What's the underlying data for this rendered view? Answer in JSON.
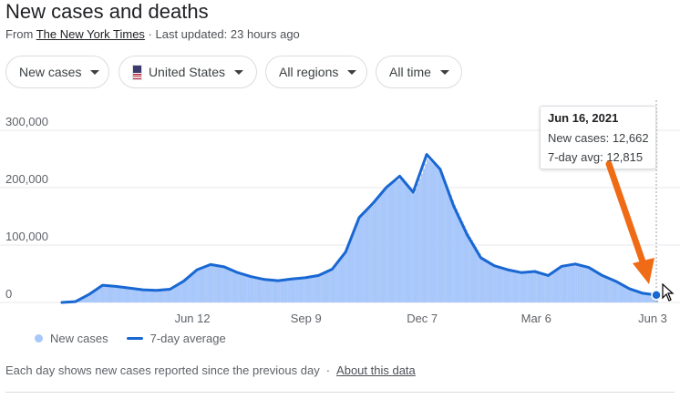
{
  "header": {
    "title": "New cases and deaths",
    "source_prefix": "From ",
    "source_name": "The New York Times",
    "source_suffix": " · Last updated: 23 hours ago"
  },
  "filters": {
    "metric": "New cases",
    "location": "United States",
    "region": "All regions",
    "range": "All time"
  },
  "tooltip": {
    "date": "Jun 16, 2021",
    "new_cases_label": "New cases:",
    "new_cases_value": "12,662",
    "avg_label": "7-day avg:",
    "avg_value": "12,815"
  },
  "legend": {
    "bars_label": "New cases",
    "line_label": "7-day average"
  },
  "footer": {
    "note": "Each day shows new cases reported since the previous day",
    "about_link": "About this data"
  },
  "colors": {
    "bar": "#a8c7fa",
    "line": "#1967d2",
    "annotation_arrow": "#f06b16"
  },
  "chart_data": {
    "type": "area",
    "x_ticks": [
      "Jun 12",
      "Sep 9",
      "Dec 7",
      "Mar 6",
      "Jun 3"
    ],
    "y_ticks": [
      "300,000",
      "200,000",
      "100,000",
      "0"
    ],
    "ylim": [
      0,
      300000
    ],
    "grid": true,
    "legend_position": "bottom-left",
    "x_range_days": 480,
    "series": [
      {
        "name": "New cases",
        "kind": "bars",
        "points": [
          [
            0,
            0
          ],
          [
            14,
            2000
          ],
          [
            28,
            15000
          ],
          [
            42,
            30000
          ],
          [
            56,
            28000
          ],
          [
            70,
            25000
          ],
          [
            84,
            22000
          ],
          [
            98,
            21000
          ],
          [
            112,
            24000
          ],
          [
            126,
            38000
          ],
          [
            140,
            58000
          ],
          [
            154,
            65000
          ],
          [
            168,
            62000
          ],
          [
            182,
            52000
          ],
          [
            196,
            45000
          ],
          [
            210,
            40000
          ],
          [
            224,
            38000
          ],
          [
            238,
            42000
          ],
          [
            252,
            44000
          ],
          [
            266,
            48000
          ],
          [
            280,
            60000
          ],
          [
            294,
            90000
          ],
          [
            308,
            150000
          ],
          [
            322,
            170000
          ],
          [
            336,
            205000
          ],
          [
            350,
            215000
          ],
          [
            364,
            190000
          ],
          [
            378,
            250000
          ],
          [
            392,
            230000
          ],
          [
            406,
            170000
          ],
          [
            420,
            120000
          ],
          [
            434,
            80000
          ],
          [
            448,
            65000
          ],
          [
            462,
            58000
          ],
          [
            476,
            52000
          ],
          [
            490,
            55000
          ],
          [
            504,
            48000
          ],
          [
            518,
            64000
          ],
          [
            532,
            68000
          ],
          [
            546,
            62000
          ],
          [
            560,
            48000
          ],
          [
            574,
            38000
          ],
          [
            588,
            25000
          ],
          [
            602,
            17000
          ],
          [
            616,
            12662
          ]
        ]
      },
      {
        "name": "7-day average",
        "kind": "line",
        "points": [
          [
            0,
            0
          ],
          [
            14,
            1500
          ],
          [
            28,
            14000
          ],
          [
            42,
            30000
          ],
          [
            56,
            28000
          ],
          [
            70,
            25000
          ],
          [
            84,
            22000
          ],
          [
            98,
            21000
          ],
          [
            112,
            23000
          ],
          [
            126,
            37000
          ],
          [
            140,
            57000
          ],
          [
            154,
            66000
          ],
          [
            168,
            62000
          ],
          [
            182,
            52000
          ],
          [
            196,
            45000
          ],
          [
            210,
            40000
          ],
          [
            224,
            38000
          ],
          [
            238,
            41000
          ],
          [
            252,
            43000
          ],
          [
            266,
            47000
          ],
          [
            280,
            58000
          ],
          [
            294,
            88000
          ],
          [
            308,
            148000
          ],
          [
            322,
            172000
          ],
          [
            336,
            200000
          ],
          [
            350,
            220000
          ],
          [
            364,
            192000
          ],
          [
            378,
            258000
          ],
          [
            392,
            232000
          ],
          [
            406,
            168000
          ],
          [
            420,
            118000
          ],
          [
            434,
            78000
          ],
          [
            448,
            64000
          ],
          [
            462,
            57000
          ],
          [
            476,
            52000
          ],
          [
            490,
            54000
          ],
          [
            504,
            47000
          ],
          [
            518,
            63000
          ],
          [
            532,
            67000
          ],
          [
            546,
            61000
          ],
          [
            560,
            47000
          ],
          [
            574,
            37000
          ],
          [
            588,
            24000
          ],
          [
            602,
            16000
          ],
          [
            616,
            12815
          ]
        ]
      }
    ]
  }
}
